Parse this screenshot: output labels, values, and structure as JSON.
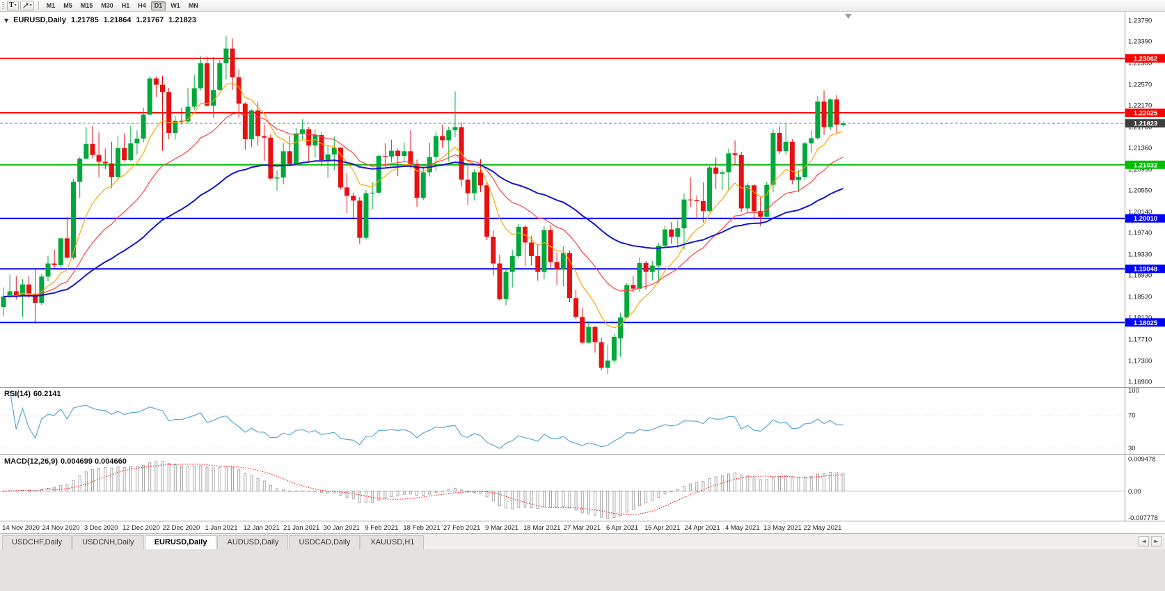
{
  "toolbar": {
    "text_tool_label": "T",
    "timeframes": [
      "M1",
      "M5",
      "M15",
      "M30",
      "H1",
      "H4",
      "D1",
      "W1",
      "MN"
    ],
    "active_timeframe": "D1"
  },
  "chart_header": {
    "symbol": "EURUSD,Daily",
    "open": "1.21785",
    "high": "1.21864",
    "low": "1.21767",
    "close": "1.21823"
  },
  "indicators": {
    "rsi": {
      "label": "RSI(14)",
      "value": "60.2141",
      "period": 14,
      "levels": [
        100,
        70,
        30
      ],
      "color": "#58A6D6"
    },
    "macd": {
      "label": "MACD(12,26,9)",
      "values": "0.004699 0.004660",
      "fast": 12,
      "slow": 26,
      "signal": 9,
      "axis_max": "0.009478",
      "axis_zero": "0.00",
      "axis_min": "-0.007778",
      "hist_color": "#9e9e9e",
      "signal_color": "#FF0000"
    }
  },
  "price_axis": {
    "labels": [
      "1.23790",
      "1.23390",
      "1.22980",
      "1.22570",
      "1.22170",
      "1.21760",
      "1.21360",
      "1.20950",
      "1.20550",
      "1.20140",
      "1.19740",
      "1.19330",
      "1.18930",
      "1.18520",
      "1.18120",
      "1.17710",
      "1.17300",
      "1.16900"
    ]
  },
  "time_axis": {
    "labels": [
      "14 Nov 2020",
      "24 Nov 2020",
      "3 Dec 2020",
      "12 Dec 2020",
      "22 Dec 2020",
      "1 Jan 2021",
      "12 Jan 2021",
      "21 Jan 2021",
      "30 Jan 2021",
      "9 Feb 2021",
      "18 Feb 2021",
      "27 Feb 2021",
      "9 Mar 2021",
      "18 Mar 2021",
      "27 Mar 2021",
      "6 Apr 2021",
      "15 Apr 2021",
      "24 Apr 2021",
      "4 May 2021",
      "13 May 2021",
      "22 May 2021"
    ]
  },
  "hlines": [
    {
      "price": 1.23062,
      "label": "1.23062",
      "color": "#FF0000",
      "width": 2
    },
    {
      "price": 1.22025,
      "label": "1.22025",
      "color": "#FF0000",
      "width": 2
    },
    {
      "price": 1.21032,
      "label": "1.21032",
      "color": "#00BE00",
      "width": 2
    },
    {
      "price": 1.2001,
      "label": "1.20010",
      "color": "#0000FF",
      "width": 2
    },
    {
      "price": 1.19048,
      "label": "1.19048",
      "color": "#0000FF",
      "width": 2
    },
    {
      "price": 1.18025,
      "label": "1.18025",
      "color": "#0000FF",
      "width": 2
    }
  ],
  "bid": {
    "price": 1.21823,
    "label": "1.21823"
  },
  "moving_averages": [
    {
      "period": 9,
      "method": "ema",
      "color": "#FFA500",
      "width": 1.2
    },
    {
      "period": 21,
      "method": "ema",
      "color": "#FF4040",
      "width": 1.2
    },
    {
      "period": 50,
      "method": "ema",
      "color": "#1515CE",
      "width": 2
    }
  ],
  "tabs": {
    "active_label": "EURUSD,Daily",
    "items": [
      {
        "label": "USDCHF,Daily"
      },
      {
        "label": "USDCNH,Daily"
      },
      {
        "label": "EURUSD,Daily"
      },
      {
        "label": "AUDUSD,Daily"
      },
      {
        "label": "USDCAD,Daily"
      },
      {
        "label": "XAUUSD,H1"
      }
    ]
  },
  "chart_data": {
    "type": "candlestick",
    "symbol": "EURUSD",
    "timeframe": "Daily",
    "up_color": "#00A83C",
    "down_color": "#E81010",
    "ylim": [
      1.16795,
      1.2388
    ],
    "candles": [
      [
        "2020-11-16",
        1.1832,
        1.1869,
        1.1814,
        1.1852
      ],
      [
        "2020-11-17",
        1.1852,
        1.1894,
        1.1849,
        1.1862
      ],
      [
        "2020-11-18",
        1.1862,
        1.1891,
        1.1846,
        1.1853
      ],
      [
        "2020-11-19",
        1.1853,
        1.1885,
        1.1813,
        1.1875
      ],
      [
        "2020-11-20",
        1.1875,
        1.1891,
        1.1849,
        1.1857
      ],
      [
        "2020-11-23",
        1.1857,
        1.1906,
        1.18,
        1.184
      ],
      [
        "2020-11-24",
        1.184,
        1.1895,
        1.1836,
        1.189
      ],
      [
        "2020-11-25",
        1.189,
        1.1929,
        1.1881,
        1.1915
      ],
      [
        "2020-11-26",
        1.1915,
        1.1941,
        1.1906,
        1.1912
      ],
      [
        "2020-11-27",
        1.1912,
        1.1964,
        1.1907,
        1.1963
      ],
      [
        "2020-11-30",
        1.1963,
        1.2003,
        1.1924,
        1.1926
      ],
      [
        "2020-12-01",
        1.1926,
        1.2076,
        1.1923,
        1.2071
      ],
      [
        "2020-12-02",
        1.2071,
        1.2118,
        1.204,
        1.2115
      ],
      [
        "2020-12-03",
        1.2115,
        1.2175,
        1.2114,
        1.2143
      ],
      [
        "2020-12-04",
        1.2143,
        1.2177,
        1.2116,
        1.2122
      ],
      [
        "2020-12-07",
        1.2122,
        1.2166,
        1.2079,
        1.2109
      ],
      [
        "2020-12-08",
        1.2109,
        1.2134,
        1.2095,
        1.2106
      ],
      [
        "2020-12-09",
        1.2106,
        1.2147,
        1.2059,
        1.208
      ],
      [
        "2020-12-10",
        1.208,
        1.2159,
        1.2076,
        1.2135
      ],
      [
        "2020-12-11",
        1.2135,
        1.2163,
        1.211,
        1.2112
      ],
      [
        "2020-12-14",
        1.2112,
        1.2177,
        1.211,
        1.2144
      ],
      [
        "2020-12-15",
        1.2144,
        1.2169,
        1.2123,
        1.2153
      ],
      [
        "2020-12-16",
        1.2153,
        1.2212,
        1.2146,
        1.2199
      ],
      [
        "2020-12-17",
        1.2199,
        1.2273,
        1.2198,
        1.2268
      ],
      [
        "2020-12-18",
        1.2268,
        1.2272,
        1.2232,
        1.2256
      ],
      [
        "2020-12-21",
        1.2256,
        1.2273,
        1.213,
        1.2242
      ],
      [
        "2020-12-22",
        1.2242,
        1.225,
        1.2152,
        1.2164
      ],
      [
        "2020-12-23",
        1.2164,
        1.2196,
        1.2151,
        1.2187
      ],
      [
        "2020-12-24",
        1.2187,
        1.2212,
        1.218,
        1.2186
      ],
      [
        "2020-12-28",
        1.2186,
        1.225,
        1.2181,
        1.2214
      ],
      [
        "2020-12-29",
        1.2214,
        1.2275,
        1.2208,
        1.2249
      ],
      [
        "2020-12-30",
        1.2249,
        1.231,
        1.2245,
        1.2297
      ],
      [
        "2020-12-31",
        1.2297,
        1.231,
        1.2214,
        1.2216
      ],
      [
        "2021-01-04",
        1.2216,
        1.2309,
        1.2193,
        1.2246
      ],
      [
        "2021-01-05",
        1.2246,
        1.2303,
        1.2245,
        1.2297
      ],
      [
        "2021-01-06",
        1.2297,
        1.2349,
        1.2266,
        1.2325
      ],
      [
        "2021-01-07",
        1.2325,
        1.2344,
        1.2246,
        1.227
      ],
      [
        "2021-01-08",
        1.227,
        1.2285,
        1.2193,
        1.222
      ],
      [
        "2021-01-11",
        1.222,
        1.2223,
        1.2132,
        1.2152
      ],
      [
        "2021-01-12",
        1.2152,
        1.2209,
        1.2137,
        1.2207
      ],
      [
        "2021-01-13",
        1.2207,
        1.2223,
        1.214,
        1.2158
      ],
      [
        "2021-01-14",
        1.2158,
        1.218,
        1.2111,
        1.2155
      ],
      [
        "2021-01-15",
        1.2155,
        1.2161,
        1.2075,
        1.2077
      ],
      [
        "2021-01-18",
        1.2077,
        1.2092,
        1.2054,
        1.2079
      ],
      [
        "2021-01-19",
        1.2079,
        1.2145,
        1.2066,
        1.2129
      ],
      [
        "2021-01-20",
        1.2129,
        1.2159,
        1.2101,
        1.2105
      ],
      [
        "2021-01-21",
        1.2105,
        1.2173,
        1.2103,
        1.2163
      ],
      [
        "2021-01-22",
        1.2163,
        1.219,
        1.2151,
        1.2171
      ],
      [
        "2021-01-25",
        1.2171,
        1.2176,
        1.2108,
        1.214
      ],
      [
        "2021-01-26",
        1.214,
        1.217,
        1.2117,
        1.216
      ],
      [
        "2021-01-27",
        1.216,
        1.2165,
        1.2101,
        1.2112
      ],
      [
        "2021-01-28",
        1.2112,
        1.2141,
        1.2078,
        1.2123
      ],
      [
        "2021-01-29",
        1.2123,
        1.2157,
        1.2093,
        1.2136
      ],
      [
        "2021-02-01",
        1.2136,
        1.2137,
        1.2056,
        1.206
      ],
      [
        "2021-02-02",
        1.206,
        1.2087,
        1.2011,
        1.2044
      ],
      [
        "2021-02-03",
        1.2044,
        1.205,
        1.1999,
        1.2035
      ],
      [
        "2021-02-04",
        1.2035,
        1.2042,
        1.1952,
        1.1964
      ],
      [
        "2021-02-05",
        1.1964,
        1.2055,
        1.196,
        1.2049
      ],
      [
        "2021-02-08",
        1.2049,
        1.207,
        1.2019,
        1.205
      ],
      [
        "2021-02-09",
        1.205,
        1.2122,
        1.2048,
        1.212
      ],
      [
        "2021-02-10",
        1.212,
        1.2144,
        1.2099,
        1.2119
      ],
      [
        "2021-02-11",
        1.2119,
        1.2151,
        1.2108,
        1.213
      ],
      [
        "2021-02-12",
        1.213,
        1.2134,
        1.2082,
        1.212
      ],
      [
        "2021-02-15",
        1.212,
        1.2146,
        1.2108,
        1.2129
      ],
      [
        "2021-02-16",
        1.2129,
        1.2169,
        1.2096,
        1.2105
      ],
      [
        "2021-02-17",
        1.2105,
        1.2113,
        1.2023,
        1.204
      ],
      [
        "2021-02-18",
        1.204,
        1.2097,
        1.2036,
        1.2089
      ],
      [
        "2021-02-19",
        1.2089,
        1.2145,
        1.2081,
        1.2118
      ],
      [
        "2021-02-22",
        1.2118,
        1.2167,
        1.2091,
        1.2158
      ],
      [
        "2021-02-23",
        1.2158,
        1.218,
        1.2135,
        1.215
      ],
      [
        "2021-02-24",
        1.215,
        1.2176,
        1.211,
        1.2169
      ],
      [
        "2021-02-25",
        1.2169,
        1.2243,
        1.2156,
        1.2175
      ],
      [
        "2021-02-26",
        1.2175,
        1.2184,
        1.2062,
        1.2075
      ],
      [
        "2021-03-01",
        1.2075,
        1.2101,
        1.2027,
        1.2049
      ],
      [
        "2021-03-02",
        1.2049,
        1.2095,
        1.2035,
        1.2089
      ],
      [
        "2021-03-03",
        1.2089,
        1.2114,
        1.2051,
        1.2064
      ],
      [
        "2021-03-04",
        1.2064,
        1.2069,
        1.196,
        1.1966
      ],
      [
        "2021-03-05",
        1.1966,
        1.1978,
        1.1892,
        1.1915
      ],
      [
        "2021-03-08",
        1.1915,
        1.1932,
        1.1845,
        1.1847
      ],
      [
        "2021-03-09",
        1.1847,
        1.1906,
        1.1835,
        1.1899
      ],
      [
        "2021-03-10",
        1.1899,
        1.1941,
        1.1869,
        1.1929
      ],
      [
        "2021-03-11",
        1.1929,
        1.199,
        1.1925,
        1.1985
      ],
      [
        "2021-03-12",
        1.1985,
        1.1989,
        1.191,
        1.1955
      ],
      [
        "2021-03-15",
        1.1955,
        1.1968,
        1.1911,
        1.1929
      ],
      [
        "2021-03-16",
        1.1929,
        1.1952,
        1.1882,
        1.1899
      ],
      [
        "2021-03-17",
        1.1899,
        1.1986,
        1.1885,
        1.1979
      ],
      [
        "2021-03-18",
        1.1979,
        1.1989,
        1.1906,
        1.1918
      ],
      [
        "2021-03-19",
        1.1918,
        1.1936,
        1.1874,
        1.1904
      ],
      [
        "2021-03-22",
        1.1904,
        1.1948,
        1.1871,
        1.1935
      ],
      [
        "2021-03-23",
        1.1935,
        1.194,
        1.1841,
        1.1849
      ],
      [
        "2021-03-24",
        1.1849,
        1.1865,
        1.1809,
        1.1813
      ],
      [
        "2021-03-25",
        1.1813,
        1.183,
        1.1761,
        1.1764
      ],
      [
        "2021-03-26",
        1.1764,
        1.1805,
        1.1762,
        1.1794
      ],
      [
        "2021-03-29",
        1.1794,
        1.1796,
        1.1745,
        1.1765
      ],
      [
        "2021-03-30",
        1.1765,
        1.1774,
        1.1711,
        1.1716
      ],
      [
        "2021-03-31",
        1.1716,
        1.176,
        1.1704,
        1.173
      ],
      [
        "2021-04-01",
        1.173,
        1.1781,
        1.1726,
        1.1775
      ],
      [
        "2021-04-05",
        1.1772,
        1.1821,
        1.1737,
        1.1812
      ],
      [
        "2021-04-06",
        1.1812,
        1.1878,
        1.181,
        1.1874
      ],
      [
        "2021-04-07",
        1.1874,
        1.1891,
        1.186,
        1.1867
      ],
      [
        "2021-04-08",
        1.1867,
        1.1927,
        1.1861,
        1.1916
      ],
      [
        "2021-04-09",
        1.1916,
        1.192,
        1.1865,
        1.1899
      ],
      [
        "2021-04-12",
        1.1899,
        1.192,
        1.1883,
        1.1911
      ],
      [
        "2021-04-13",
        1.1911,
        1.1954,
        1.1878,
        1.1949
      ],
      [
        "2021-04-14",
        1.1949,
        1.1987,
        1.1945,
        1.198
      ],
      [
        "2021-04-15",
        1.198,
        1.1994,
        1.1952,
        1.1966
      ],
      [
        "2021-04-16",
        1.1966,
        1.1997,
        1.1945,
        1.1982
      ],
      [
        "2021-04-19",
        1.1982,
        1.2048,
        1.1942,
        1.2037
      ],
      [
        "2021-04-20",
        1.2037,
        1.2079,
        1.2023,
        1.2036
      ],
      [
        "2021-04-21",
        1.2036,
        1.2045,
        1.2001,
        1.2034
      ],
      [
        "2021-04-22",
        1.2034,
        1.207,
        1.1993,
        1.2015
      ],
      [
        "2021-04-23",
        1.2015,
        1.2101,
        1.2013,
        1.2098
      ],
      [
        "2021-04-26",
        1.2098,
        1.2117,
        1.2057,
        1.2086
      ],
      [
        "2021-04-27",
        1.2086,
        1.2093,
        1.2055,
        1.2089
      ],
      [
        "2021-04-28",
        1.2089,
        1.2134,
        1.2054,
        1.2125
      ],
      [
        "2021-04-29",
        1.2125,
        1.215,
        1.2103,
        1.2122
      ],
      [
        "2021-04-30",
        1.2122,
        1.2128,
        1.2013,
        1.202
      ],
      [
        "2021-05-03",
        1.202,
        1.2068,
        1.2013,
        1.2064
      ],
      [
        "2021-05-04",
        1.2064,
        1.2067,
        1.1999,
        1.2015
      ],
      [
        "2021-05-05",
        1.2015,
        1.2043,
        1.1986,
        1.2004
      ],
      [
        "2021-05-06",
        1.2004,
        1.2071,
        1.2003,
        1.2065
      ],
      [
        "2021-05-07",
        1.2065,
        1.2171,
        1.2051,
        1.2164
      ],
      [
        "2021-05-10",
        1.2164,
        1.2177,
        1.2124,
        1.2129
      ],
      [
        "2021-05-11",
        1.2129,
        1.2182,
        1.2122,
        1.2147
      ],
      [
        "2021-05-12",
        1.2147,
        1.2152,
        1.2066,
        1.2074
      ],
      [
        "2021-05-13",
        1.2074,
        1.2093,
        1.2051,
        1.208
      ],
      [
        "2021-05-14",
        1.208,
        1.2147,
        1.2075,
        1.2144
      ],
      [
        "2021-05-17",
        1.2144,
        1.2169,
        1.2126,
        1.2154
      ],
      [
        "2021-05-18",
        1.2154,
        1.2234,
        1.2151,
        1.2224
      ],
      [
        "2021-05-19",
        1.2224,
        1.2245,
        1.216,
        1.2175
      ],
      [
        "2021-05-20",
        1.2175,
        1.223,
        1.217,
        1.2228
      ],
      [
        "2021-05-21",
        1.2228,
        1.2236,
        1.2164,
        1.218
      ],
      [
        "2021-05-24",
        1.21785,
        1.21864,
        1.21767,
        1.21823
      ]
    ]
  }
}
